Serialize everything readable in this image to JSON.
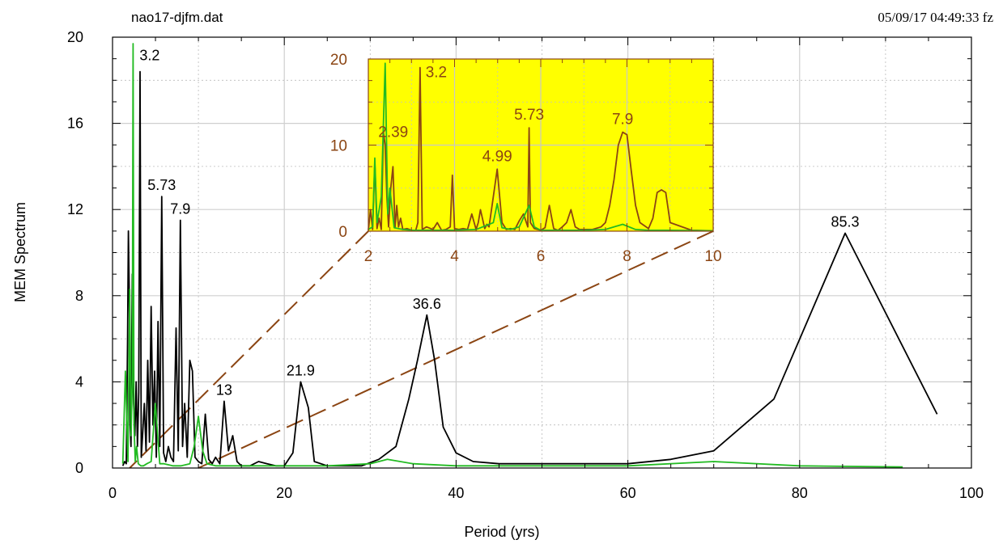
{
  "header": {
    "filename": "nao17-djfm.dat",
    "timestamp": "05/09/17  04:49:33 fz"
  },
  "colors": {
    "black_series": "#000000",
    "green_series": "#22bb22",
    "inset_series": "#8b4513",
    "inset_background": "#ffff00",
    "inset_axis": "#8b4513",
    "zoom_line": "#8b4513",
    "grid": "#bbbbbb"
  },
  "chart_data": [
    {
      "type": "line",
      "title": "",
      "xlabel": "Period (yrs)",
      "ylabel": "MEM Spectrum",
      "xlim": [
        0,
        100
      ],
      "ylim": [
        0,
        20
      ],
      "xticks": [
        0,
        20,
        40,
        60,
        80,
        100
      ],
      "yticks": [
        0,
        4,
        8,
        12,
        16,
        20
      ],
      "grid": true,
      "series": [
        {
          "color": "#000000",
          "x": [
            1.2,
            1.4,
            1.6,
            1.75,
            1.85,
            1.95,
            2.05,
            2.15,
            2.3,
            2.45,
            2.6,
            2.75,
            2.9,
            3.05,
            3.2,
            3.35,
            3.5,
            3.7,
            3.9,
            4.1,
            4.3,
            4.5,
            4.7,
            4.9,
            5.1,
            5.3,
            5.5,
            5.73,
            5.95,
            6.2,
            6.5,
            6.8,
            7.1,
            7.4,
            7.65,
            7.9,
            8.15,
            8.4,
            8.7,
            9.0,
            9.3,
            9.6,
            10.0,
            10.4,
            10.8,
            11.2,
            11.6,
            12.0,
            12.5,
            13.0,
            13.5,
            14.0,
            14.5,
            15.0,
            16.0,
            17.0,
            18.0,
            19.0,
            20.0,
            21.0,
            21.9,
            22.8,
            23.5,
            25.0,
            27.0,
            29.0,
            31.0,
            33.0,
            34.5,
            35.5,
            36.6,
            37.5,
            38.5,
            40.0,
            42.0,
            45.0,
            50.0,
            55.0,
            60.0,
            65.0,
            70.0,
            77.0,
            85.3,
            96.0
          ],
          "y": [
            0.1,
            0.3,
            0.2,
            6.0,
            11.0,
            8.0,
            2.0,
            1.0,
            9.0,
            3.0,
            1.5,
            4.0,
            1.0,
            3.5,
            18.4,
            0.5,
            1.5,
            3.0,
            0.8,
            5.0,
            1.2,
            7.5,
            2.0,
            4.5,
            0.5,
            6.8,
            1.0,
            12.6,
            0.7,
            0.3,
            1.0,
            0.5,
            0.3,
            6.5,
            0.8,
            11.5,
            1.0,
            3.0,
            0.5,
            5.0,
            4.5,
            0.5,
            0.3,
            0.2,
            2.5,
            0.4,
            0.2,
            0.5,
            0.2,
            3.1,
            0.8,
            1.5,
            0.3,
            0.1,
            0.1,
            0.3,
            0.2,
            0.1,
            0.1,
            0.7,
            4.0,
            2.8,
            0.3,
            0.1,
            0.1,
            0.1,
            0.4,
            1.0,
            3.2,
            5.0,
            7.1,
            5.0,
            1.9,
            0.7,
            0.3,
            0.2,
            0.2,
            0.2,
            0.2,
            0.4,
            0.8,
            3.2,
            10.9,
            2.5
          ]
        },
        {
          "color": "#22bb22",
          "x": [
            1.2,
            1.5,
            1.8,
            2.0,
            2.15,
            2.3,
            2.39,
            2.5,
            2.65,
            2.8,
            3.0,
            3.3,
            3.6,
            4.0,
            4.5,
            4.99,
            5.5,
            6.0,
            7.0,
            8.0,
            9.0,
            9.5,
            10.0,
            10.5,
            11.0,
            12.0,
            14.0,
            17.0,
            20.0,
            25.0,
            30.0,
            32.0,
            35.0,
            40.0,
            50.0,
            60.0,
            70.0,
            80.0,
            92.0
          ],
          "y": [
            0.2,
            4.5,
            0.3,
            8.3,
            1.5,
            4.0,
            19.7,
            2.0,
            0.3,
            1.0,
            0.2,
            0.1,
            0.1,
            0.2,
            0.3,
            3.0,
            0.2,
            0.2,
            0.1,
            0.1,
            0.2,
            1.0,
            2.4,
            0.8,
            0.2,
            0.1,
            0.1,
            0.1,
            0.1,
            0.1,
            0.2,
            0.4,
            0.2,
            0.1,
            0.1,
            0.1,
            0.3,
            0.1,
            0.05
          ]
        }
      ],
      "annotations": [
        {
          "text": "3.2",
          "x": 3.2,
          "y": 18.4
        },
        {
          "text": "5.73",
          "x": 5.73,
          "y": 12.6
        },
        {
          "text": "7.9",
          "x": 7.9,
          "y": 11.5
        },
        {
          "text": "13",
          "x": 13,
          "y": 3.1
        },
        {
          "text": "21.9",
          "x": 21.9,
          "y": 4.0
        },
        {
          "text": "36.6",
          "x": 36.6,
          "y": 7.1
        },
        {
          "text": "85.3",
          "x": 85.3,
          "y": 10.9
        }
      ]
    },
    {
      "type": "line",
      "title": "",
      "xlabel": "",
      "ylabel": "",
      "xlim": [
        2,
        10
      ],
      "ylim": [
        0,
        20
      ],
      "xticks": [
        2,
        4,
        6,
        8,
        10
      ],
      "yticks": [
        0,
        10,
        20
      ],
      "grid": true,
      "series": [
        {
          "color": "#8b4513",
          "x": [
            2.0,
            2.05,
            2.1,
            2.15,
            2.2,
            2.25,
            2.3,
            2.35,
            2.39,
            2.43,
            2.47,
            2.52,
            2.57,
            2.62,
            2.66,
            2.7,
            2.75,
            2.8,
            2.9,
            3.0,
            3.1,
            3.15,
            3.2,
            3.25,
            3.35,
            3.5,
            3.6,
            3.7,
            3.8,
            3.9,
            3.95,
            4.0,
            4.1,
            4.2,
            4.3,
            4.4,
            4.5,
            4.55,
            4.6,
            4.7,
            4.75,
            4.8,
            4.9,
            4.99,
            5.1,
            5.2,
            5.3,
            5.4,
            5.5,
            5.6,
            5.7,
            5.73,
            5.76,
            5.85,
            6.0,
            6.1,
            6.2,
            6.3,
            6.4,
            6.5,
            6.6,
            6.7,
            6.8,
            6.9,
            7.0,
            7.2,
            7.4,
            7.5,
            7.6,
            7.7,
            7.8,
            7.9,
            8.0,
            8.1,
            8.2,
            8.3,
            8.5,
            8.6,
            8.7,
            8.8,
            8.9,
            9.0,
            9.5,
            10.0
          ],
          "y": [
            0.1,
            2.5,
            0.2,
            8.0,
            0.3,
            1.5,
            0.2,
            11.5,
            10.0,
            4.0,
            0.5,
            5.0,
            7.5,
            0.4,
            3.0,
            0.5,
            1.5,
            0.2,
            0.3,
            0.1,
            0.1,
            1.0,
            19.0,
            0.2,
            0.5,
            0.2,
            1.0,
            0.1,
            0.2,
            0.5,
            6.5,
            0.3,
            0.2,
            0.3,
            0.2,
            2.0,
            0.2,
            1.0,
            2.5,
            0.3,
            0.8,
            0.5,
            4.0,
            7.2,
            1.0,
            0.2,
            0.3,
            0.2,
            1.2,
            2.0,
            0.5,
            12.0,
            1.0,
            0.3,
            0.1,
            0.4,
            3.0,
            0.3,
            0.1,
            0.5,
            1.0,
            2.5,
            0.5,
            0.2,
            0.2,
            0.2,
            0.5,
            1.0,
            3.0,
            6.0,
            10.0,
            11.5,
            11.2,
            7.0,
            3.0,
            1.0,
            0.3,
            1.5,
            4.5,
            4.8,
            4.5,
            1.0,
            0.1,
            0.05
          ]
        },
        {
          "color": "#22bb22",
          "x": [
            2.0,
            2.1,
            2.15,
            2.2,
            2.3,
            2.39,
            2.45,
            2.5,
            2.6,
            2.8,
            3.0,
            3.5,
            4.0,
            4.5,
            4.9,
            4.99,
            5.1,
            5.3,
            5.5,
            5.73,
            5.85,
            6.0,
            6.5,
            7.0,
            7.5,
            7.9,
            8.2,
            8.5,
            9.0,
            10.0
          ],
          "y": [
            0.2,
            0.5,
            8.5,
            1.0,
            4.0,
            19.5,
            2.0,
            5.0,
            0.4,
            0.2,
            0.1,
            0.1,
            0.1,
            0.2,
            1.0,
            3.2,
            0.4,
            0.2,
            0.5,
            3.0,
            0.5,
            0.1,
            0.1,
            0.1,
            0.2,
            0.8,
            0.2,
            0.1,
            0.1,
            0.05
          ]
        }
      ],
      "annotations": [
        {
          "text": "2.39",
          "x": 2.39,
          "y": 11.5
        },
        {
          "text": "3.2",
          "x": 3.2,
          "y": 19.0
        },
        {
          "text": "4.99",
          "x": 4.99,
          "y": 7.2
        },
        {
          "text": "5.73",
          "x": 5.73,
          "y": 12.0
        },
        {
          "text": "7.9",
          "x": 7.9,
          "y": 11.5
        }
      ]
    }
  ]
}
